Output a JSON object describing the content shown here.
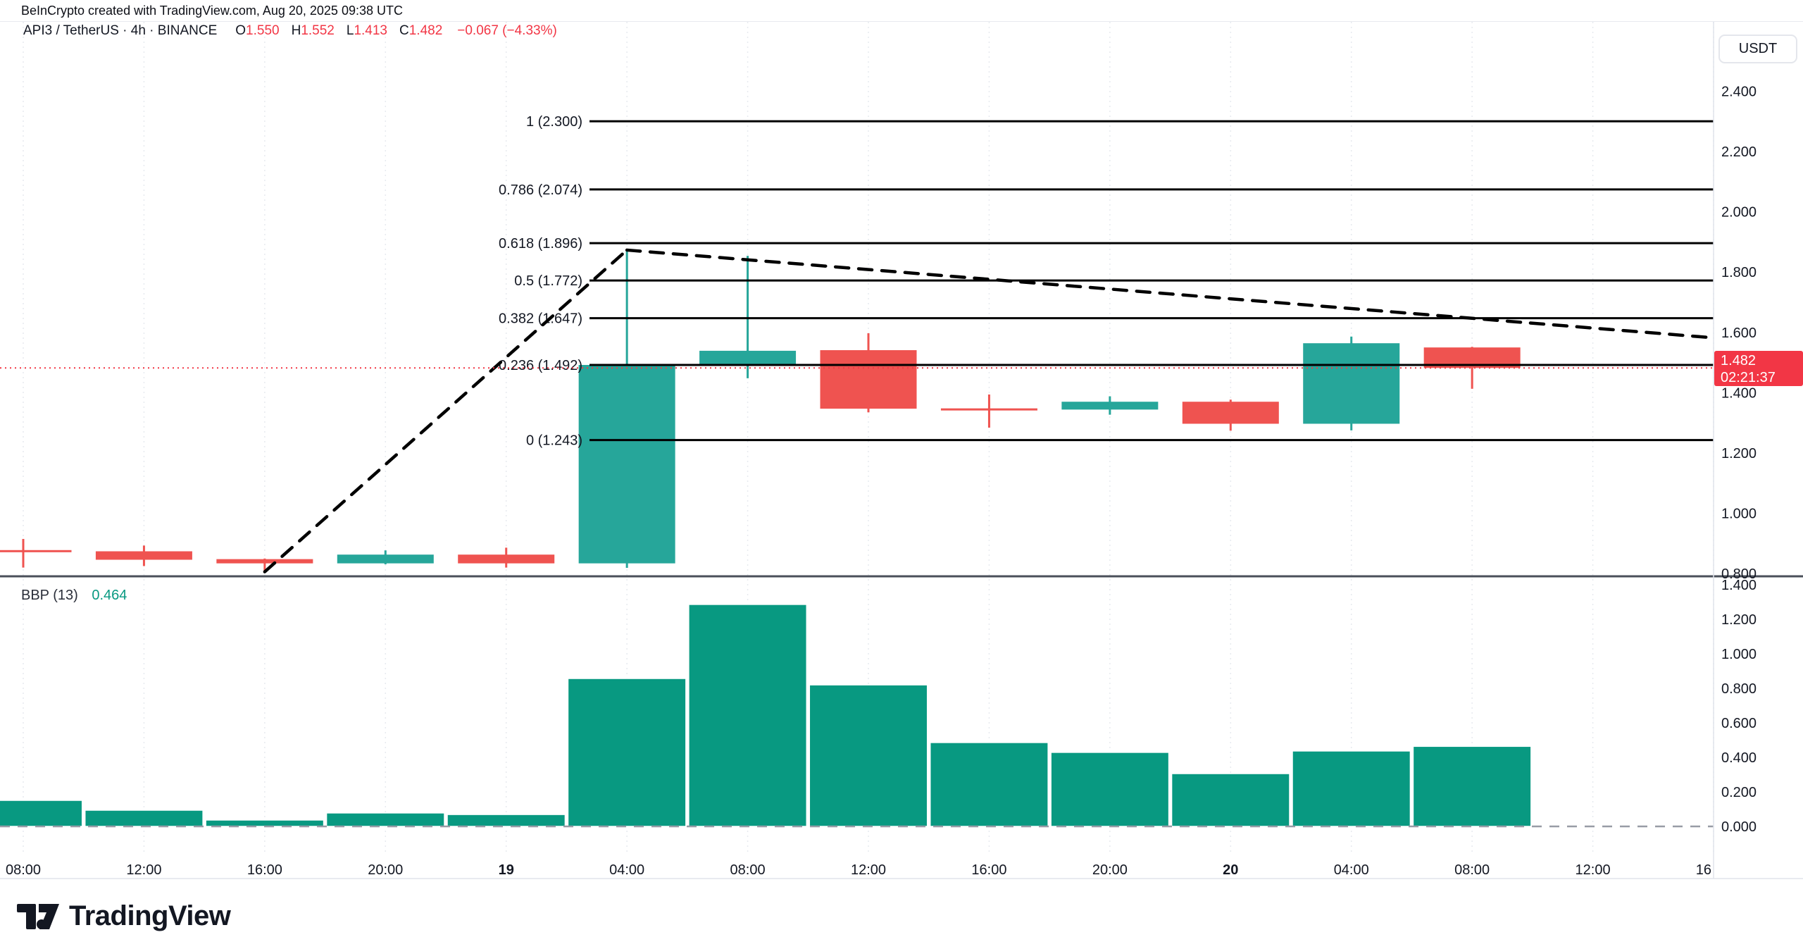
{
  "meta": {
    "attribution": "BeInCrypto created with TradingView.com, Aug 20, 2025 09:38 UTC"
  },
  "legend": {
    "title": "API3 / TetherUS · 4h · BINANCE",
    "ohlc": [
      {
        "label": "O",
        "value": "1.550"
      },
      {
        "label": "H",
        "value": "1.552"
      },
      {
        "label": "L",
        "value": "1.413"
      },
      {
        "label": "C",
        "value": "1.482"
      }
    ],
    "change": "−0.067 (−4.33%)"
  },
  "indicator": {
    "name": "BBP (13)",
    "value": "0.464"
  },
  "price_axis": {
    "currency": "USDT",
    "labels": [
      "2.400",
      "2.200",
      "2.000",
      "1.800",
      "1.600",
      "1.400",
      "1.200",
      "1.000",
      "0.800"
    ],
    "last": {
      "price": "1.482",
      "countdown": "02:21:37"
    }
  },
  "bbp_axis": {
    "labels": [
      "1.400",
      "1.200",
      "1.000",
      "0.800",
      "0.600",
      "0.400",
      "0.200",
      "0.000"
    ]
  },
  "time_axis": {
    "labels": [
      {
        "text": "08:00",
        "bold": false
      },
      {
        "text": "12:00",
        "bold": false
      },
      {
        "text": "16:00",
        "bold": false
      },
      {
        "text": "20:00",
        "bold": false
      },
      {
        "text": "19",
        "bold": true
      },
      {
        "text": "04:00",
        "bold": false
      },
      {
        "text": "08:00",
        "bold": false
      },
      {
        "text": "12:00",
        "bold": false
      },
      {
        "text": "16:00",
        "bold": false
      },
      {
        "text": "20:00",
        "bold": false
      },
      {
        "text": "20",
        "bold": true
      },
      {
        "text": "04:00",
        "bold": false
      },
      {
        "text": "08:00",
        "bold": false
      },
      {
        "text": "12:00",
        "bold": false
      },
      {
        "text": "16",
        "bold": false
      }
    ]
  },
  "watermark": "TradingView",
  "colors": {
    "up": "#26a69a",
    "down": "#ef5350",
    "hist": "#089981",
    "accent_red": "#f23645",
    "text": "#131722",
    "grid": "#e7eaef",
    "separator": "#4a4f59",
    "axis_border": "#e0e3eb",
    "zero_line": "#989ca6",
    "fib_line": "#000000",
    "trend_line": "#000000"
  },
  "chart_data": {
    "type": "candlestick+histogram",
    "title": "API3 / TetherUS · 4h · BINANCE",
    "price_axis_range": [
      0.78,
      2.47
    ],
    "bbp_axis_range": [
      0.0,
      1.45
    ],
    "grid": "vertical-dotted",
    "legend_position": "top-left",
    "candles": [
      {
        "time": "08:00",
        "o": 0.878,
        "h": 0.915,
        "l": 0.82,
        "c": 0.871
      },
      {
        "time": "12:00",
        "o": 0.874,
        "h": 0.893,
        "l": 0.825,
        "c": 0.846
      },
      {
        "time": "16:00",
        "o": 0.848,
        "h": 0.85,
        "l": 0.806,
        "c": 0.834
      },
      {
        "time": "20:00",
        "o": 0.834,
        "h": 0.877,
        "l": 0.831,
        "c": 0.863
      },
      {
        "time": "19",
        "o": 0.863,
        "h": 0.886,
        "l": 0.82,
        "c": 0.834
      },
      {
        "time": "04:00",
        "o": 0.834,
        "h": 1.873,
        "l": 0.819,
        "c": 1.492
      },
      {
        "time": "08:00",
        "o": 1.494,
        "h": 1.854,
        "l": 1.448,
        "c": 1.539
      },
      {
        "time": "12:00",
        "o": 1.541,
        "h": 1.597,
        "l": 1.335,
        "c": 1.347
      },
      {
        "time": "16:00",
        "o": 1.348,
        "h": 1.394,
        "l": 1.284,
        "c": 1.341
      },
      {
        "time": "20:00",
        "o": 1.344,
        "h": 1.388,
        "l": 1.327,
        "c": 1.37
      },
      {
        "time": "20",
        "o": 1.37,
        "h": 1.377,
        "l": 1.274,
        "c": 1.297
      },
      {
        "time": "04:00",
        "o": 1.297,
        "h": 1.586,
        "l": 1.275,
        "c": 1.564
      },
      {
        "time": "08:00",
        "o": 1.55,
        "h": 1.552,
        "l": 1.413,
        "c": 1.482
      }
    ],
    "fib_levels": [
      {
        "label": "1",
        "price": 2.3
      },
      {
        "label": "0.786",
        "price": 2.074
      },
      {
        "label": "0.618",
        "price": 1.896
      },
      {
        "label": "0.5",
        "price": 1.772
      },
      {
        "label": "0.382",
        "price": 1.647
      },
      {
        "label": "0.236",
        "price": 1.492
      },
      {
        "label": "0",
        "price": 1.243
      }
    ],
    "trendlines": [
      {
        "style": "dashed",
        "from": {
          "index": 2,
          "price": 0.806
        },
        "to": {
          "index": 5,
          "price": 1.873
        }
      },
      {
        "style": "dashed",
        "from": {
          "index": 5,
          "price": 1.873
        },
        "to": {
          "index": 14,
          "price": 1.582
        }
      }
    ],
    "price_line": 1.482,
    "bbp": {
      "name": "BBP",
      "length": 13,
      "current": 0.464,
      "values": [
        0.151,
        0.094,
        0.037,
        0.078,
        0.069,
        0.857,
        1.286,
        0.82,
        0.486,
        0.429,
        0.306,
        0.437,
        0.464
      ]
    }
  }
}
